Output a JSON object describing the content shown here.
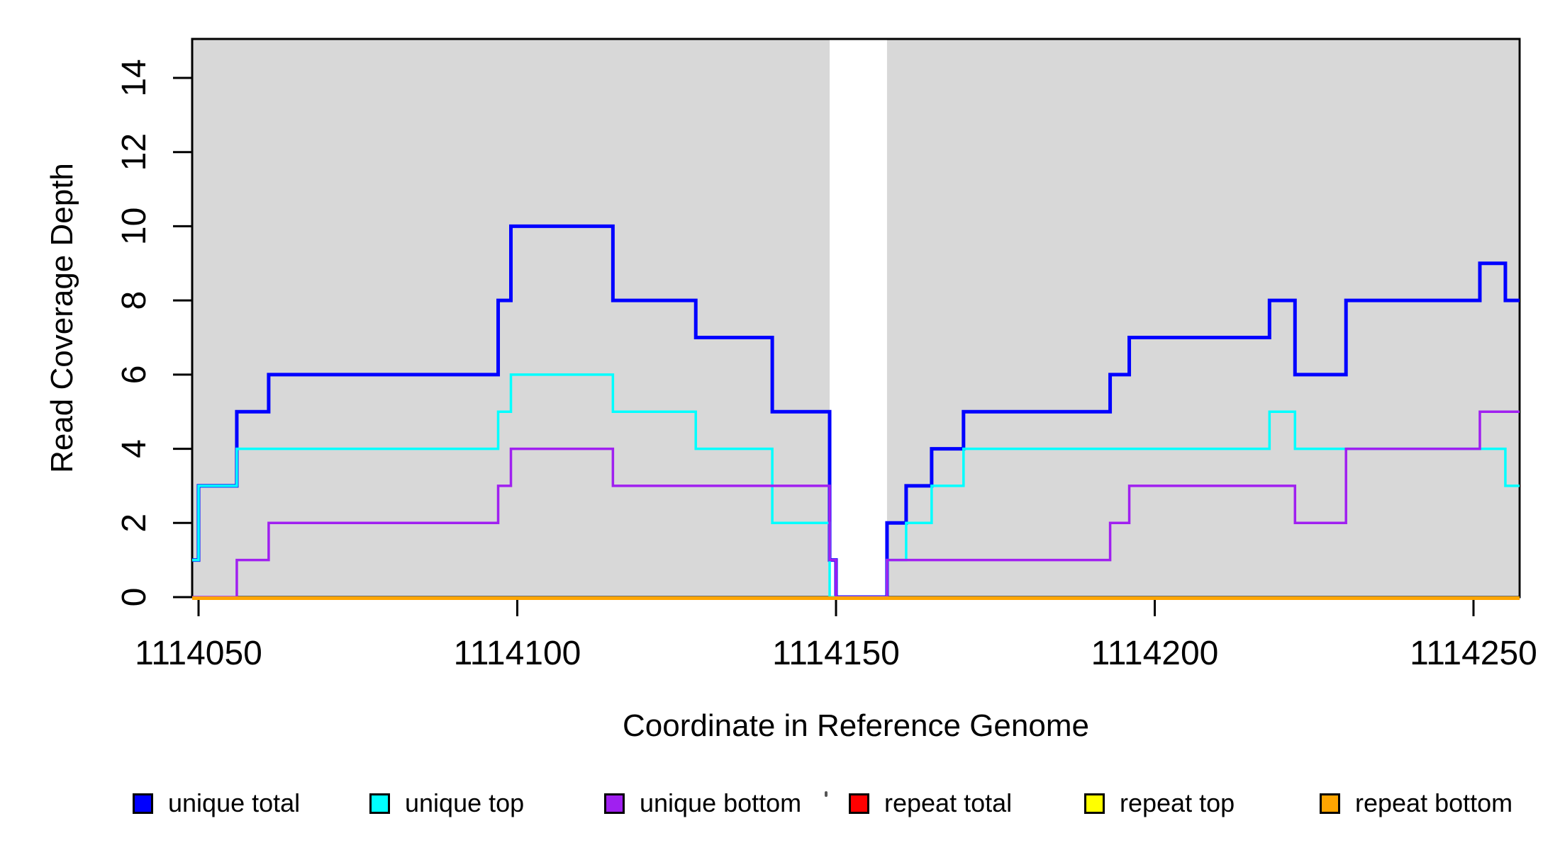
{
  "chart_data": {
    "type": "line",
    "subtype": "step-coverage",
    "title": "",
    "xlabel": "Coordinate in Reference Genome",
    "ylabel": "Read Coverage Depth",
    "x_ticks": [
      1114050,
      1114100,
      1114150,
      1114200,
      1114250
    ],
    "y_ticks": [
      0,
      2,
      4,
      6,
      8,
      10,
      12,
      14
    ],
    "x_range": [
      1114049,
      1114257
    ],
    "ylim": [
      0,
      15.05
    ],
    "grid": "off",
    "plot_background": "#d8d8d8",
    "shaded_regions": [
      [
        1114049,
        1114149
      ],
      [
        1114158,
        1114257
      ]
    ],
    "white_gap_region": [
      1114149,
      1114158
    ],
    "series": [
      {
        "name": "unique total",
        "color": "#0000ff",
        "line_width": 5,
        "steps": [
          [
            1114049,
            1
          ],
          [
            1114050,
            3
          ],
          [
            1114056,
            5
          ],
          [
            1114061,
            6
          ],
          [
            1114097,
            8
          ],
          [
            1114099,
            10
          ],
          [
            1114115,
            8
          ],
          [
            1114128,
            7
          ],
          [
            1114140,
            5
          ],
          [
            1114149,
            1
          ],
          [
            1114150,
            0
          ],
          [
            1114158,
            2
          ],
          [
            1114161,
            3
          ],
          [
            1114165,
            4
          ],
          [
            1114170,
            5
          ],
          [
            1114193,
            6
          ],
          [
            1114196,
            7
          ],
          [
            1114218,
            8
          ],
          [
            1114222,
            6
          ],
          [
            1114230,
            8
          ],
          [
            1114251,
            9
          ],
          [
            1114255,
            8
          ]
        ]
      },
      {
        "name": "unique top",
        "color": "#00ffff",
        "line_width": 3.5,
        "steps": [
          [
            1114049,
            1
          ],
          [
            1114050,
            3
          ],
          [
            1114056,
            4
          ],
          [
            1114097,
            5
          ],
          [
            1114099,
            6
          ],
          [
            1114115,
            5
          ],
          [
            1114128,
            4
          ],
          [
            1114140,
            2
          ],
          [
            1114149,
            0
          ],
          [
            1114158,
            1
          ],
          [
            1114161,
            2
          ],
          [
            1114165,
            3
          ],
          [
            1114170,
            4
          ],
          [
            1114218,
            5
          ],
          [
            1114222,
            4
          ],
          [
            1114255,
            3
          ]
        ]
      },
      {
        "name": "unique bottom",
        "color": "#a020f0",
        "line_width": 3.5,
        "steps": [
          [
            1114049,
            0
          ],
          [
            1114056,
            1
          ],
          [
            1114061,
            2
          ],
          [
            1114097,
            3
          ],
          [
            1114099,
            4
          ],
          [
            1114115,
            3
          ],
          [
            1114149,
            1
          ],
          [
            1114150,
            0
          ],
          [
            1114158,
            1
          ],
          [
            1114193,
            2
          ],
          [
            1114196,
            3
          ],
          [
            1114222,
            2
          ],
          [
            1114230,
            4
          ],
          [
            1114251,
            5
          ]
        ]
      },
      {
        "name": "repeat total",
        "color": "#ff0000",
        "line_width": 3.5,
        "steps": [
          [
            1114049,
            0
          ]
        ]
      },
      {
        "name": "repeat top",
        "color": "#ffff00",
        "line_width": 3.5,
        "steps": [
          [
            1114049,
            0
          ]
        ]
      },
      {
        "name": "repeat bottom",
        "color": "#ffa500",
        "line_width": 5,
        "steps": [
          [
            1114049,
            0
          ]
        ]
      }
    ],
    "legend": {
      "position": "bottom",
      "items": [
        {
          "label": "unique total",
          "color": "#0000ff"
        },
        {
          "label": "unique top",
          "color": "#00ffff"
        },
        {
          "label": "unique bottom",
          "color": "#a020f0"
        },
        {
          "label": "repeat total",
          "color": "#ff0000"
        },
        {
          "label": "repeat top",
          "color": "#ffff00"
        },
        {
          "label": "repeat bottom",
          "color": "#ffa500"
        }
      ]
    }
  }
}
